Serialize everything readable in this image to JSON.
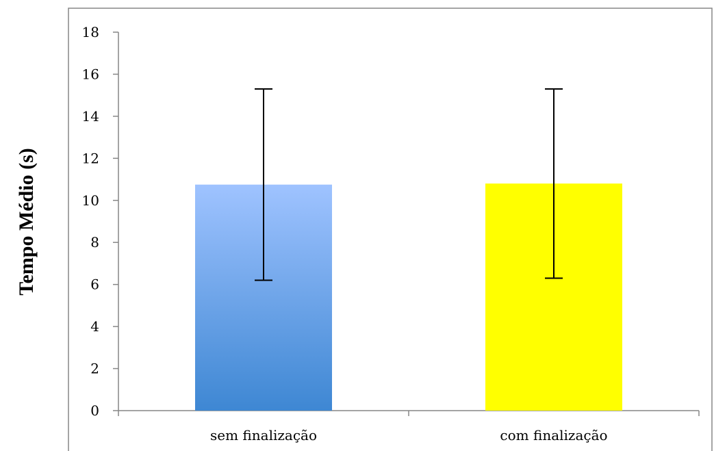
{
  "chart_data": {
    "type": "bar",
    "title": "",
    "xlabel": "",
    "ylabel": "Tempo Médio (s)",
    "ylim": [
      0,
      18
    ],
    "yticks": [
      0,
      2,
      4,
      6,
      8,
      10,
      12,
      14,
      16,
      18
    ],
    "categories": [
      "sem finalização",
      "com finalização"
    ],
    "values": [
      10.75,
      10.8
    ],
    "error_bars": [
      {
        "low": 6.2,
        "high": 15.3
      },
      {
        "low": 6.3,
        "high": 15.3
      }
    ],
    "grid": false,
    "legend": "none",
    "colors": {
      "bar_1_top": "#9fc3ff",
      "bar_1_bottom": "#3e87d3",
      "bar_2": "#ffff00",
      "axis": "#868686",
      "error_bar": "#000000"
    }
  }
}
